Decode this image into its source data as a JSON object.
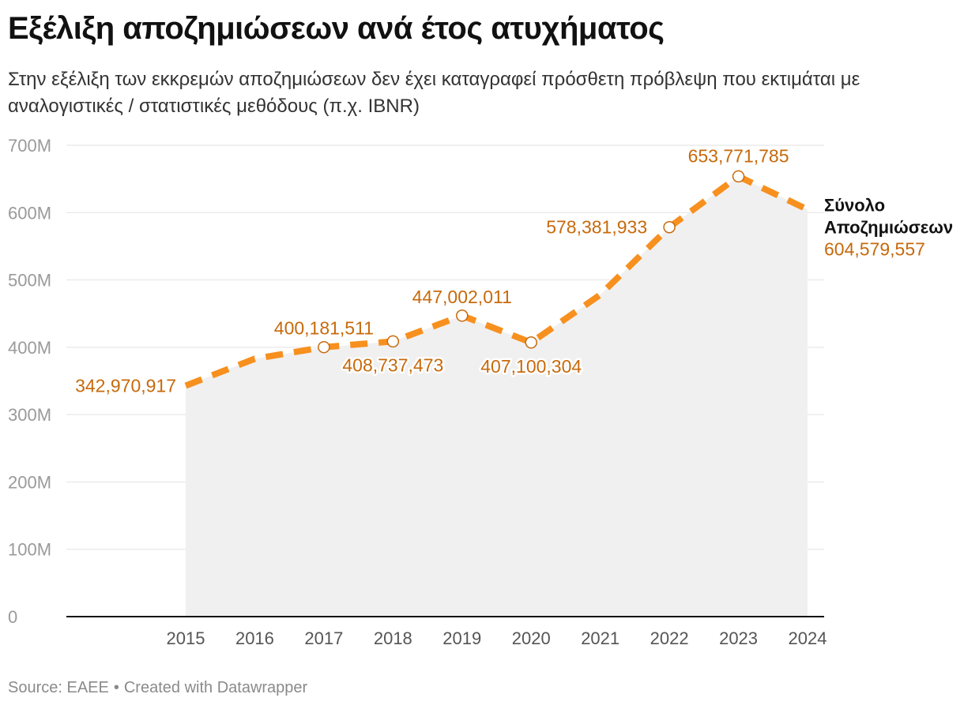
{
  "title": "Εξέλιξη αποζημιώσεων ανά έτος ατυχήματος",
  "subtitle": "Στην εξέλιξη των εκκρεμών αποζημιώσεων δεν έχει καταγραφεί πρόσθετη πρόβλεψη που εκτιμάται με αναλογιστικές / στατιστικές μεθόδους (π.χ. IBNR)",
  "footer": {
    "source": "Source: EAEE",
    "separator": "•",
    "credit": "Created with Datawrapper"
  },
  "colors": {
    "line": "#f7901e",
    "label": "#c76a0c",
    "area": "#f0f0f0",
    "grid": "#e2e2e2",
    "axis": "#111111"
  },
  "chart_data": {
    "type": "line",
    "title": "Εξέλιξη αποζημιώσεων ανά έτος ατυχήματος",
    "x": [
      "2015",
      "2016",
      "2017",
      "2018",
      "2019",
      "2020",
      "2021",
      "2022",
      "2023",
      "2024"
    ],
    "series": [
      {
        "name": "Σύνολο Αποζημιώσεων",
        "name_lines": [
          "Σύνολο",
          "Αποζημιώσεων"
        ],
        "values": [
          342970917,
          383000000,
          400181511,
          408737473,
          447002011,
          407100304,
          478000000,
          578381933,
          653771785,
          604579557
        ],
        "data_labels": [
          "342,970,917",
          null,
          "400,181,511",
          "408,737,473",
          "447,002,011",
          "407,100,304",
          null,
          "578,381,933",
          "653,771,785",
          "604,579,557"
        ],
        "markers": [
          false,
          false,
          true,
          true,
          true,
          true,
          false,
          true,
          true,
          false
        ],
        "style": "dashed",
        "area_fill": true
      }
    ],
    "yticks": [
      0,
      100000000,
      200000000,
      300000000,
      400000000,
      500000000,
      600000000,
      700000000
    ],
    "ytick_labels": [
      "0",
      "100M",
      "200M",
      "300M",
      "400M",
      "500M",
      "600M",
      "700M"
    ],
    "ylim": [
      0,
      700000000
    ],
    "grid": true,
    "legend": "none"
  }
}
